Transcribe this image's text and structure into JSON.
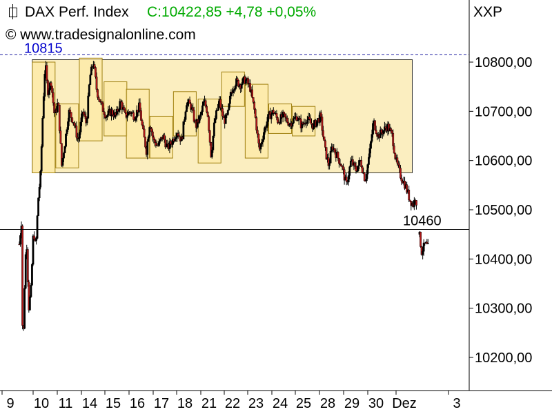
{
  "header": {
    "title": "DAX Perf. Index",
    "close_text": "C:10422,85 +4,78 +0,05%",
    "copyright": "© www.tradesignalonline.com",
    "symbol": "XXP"
  },
  "colors": {
    "up": "#000000",
    "down": "#b01818",
    "box_fill": "#fbeec0",
    "box_stroke": "#a08010",
    "dashed_line": "#1a1aa0",
    "annotation_blue": "#0000cc",
    "close_green": "#00aa00"
  },
  "chart_data": {
    "type": "candlestick",
    "title": "DAX Perf. Index",
    "ylim": [
      10140,
      10840
    ],
    "y_ticks": [
      10200,
      10300,
      10400,
      10500,
      10600,
      10700,
      10800
    ],
    "y_tick_labels": [
      "10200,00",
      "10300,00",
      "10400,00",
      "10500,00",
      "10600,00",
      "10700,00",
      "10800,00"
    ],
    "x_labels": [
      "9",
      "10",
      "11",
      "14",
      "15",
      "16",
      "17",
      "18",
      "21",
      "22",
      "23",
      "24",
      "25",
      "28",
      "29",
      "30",
      "Dez",
      "3"
    ],
    "annotations": [
      {
        "text": "10815",
        "value": 10815,
        "style": "dashed",
        "color": "blue"
      },
      {
        "text": "10460",
        "value": 10460,
        "style": "solid",
        "color": "black"
      }
    ],
    "range_box": {
      "high": 10805,
      "low": 10575
    },
    "sub_boxes": [
      {
        "high": 10800,
        "low": 10575
      },
      {
        "high": 10715,
        "low": 10585
      },
      {
        "high": 10808,
        "low": 10640
      },
      {
        "high": 10760,
        "low": 10650
      },
      {
        "high": 10745,
        "low": 10605
      },
      {
        "high": 10690,
        "low": 10605
      },
      {
        "high": 10740,
        "low": 10650
      },
      {
        "high": 10725,
        "low": 10595
      },
      {
        "high": 10780,
        "low": 10710
      },
      {
        "high": 10755,
        "low": 10605
      },
      {
        "high": 10715,
        "low": 10655
      },
      {
        "high": 10710,
        "low": 10650
      }
    ],
    "path": [
      {
        "x": 0.0,
        "y": 10430
      },
      {
        "x": 0.1,
        "y": 10480
      },
      {
        "x": 0.15,
        "y": 10175
      },
      {
        "x": 0.2,
        "y": 10310
      },
      {
        "x": 0.3,
        "y": 10450
      },
      {
        "x": 0.4,
        "y": 10300
      },
      {
        "x": 0.5,
        "y": 10340
      },
      {
        "x": 0.6,
        "y": 10460
      },
      {
        "x": 0.7,
        "y": 10420
      },
      {
        "x": 0.8,
        "y": 10520
      },
      {
        "x": 0.9,
        "y": 10570
      },
      {
        "x": 1.0,
        "y": 10700
      },
      {
        "x": 1.1,
        "y": 10800
      },
      {
        "x": 1.2,
        "y": 10740
      },
      {
        "x": 1.35,
        "y": 10760
      },
      {
        "x": 1.5,
        "y": 10690
      },
      {
        "x": 1.65,
        "y": 10720
      },
      {
        "x": 1.8,
        "y": 10590
      },
      {
        "x": 1.95,
        "y": 10640
      },
      {
        "x": 2.1,
        "y": 10700
      },
      {
        "x": 2.3,
        "y": 10680
      },
      {
        "x": 2.5,
        "y": 10640
      },
      {
        "x": 2.7,
        "y": 10700
      },
      {
        "x": 2.85,
        "y": 10675
      },
      {
        "x": 3.0,
        "y": 10770
      },
      {
        "x": 3.15,
        "y": 10800
      },
      {
        "x": 3.3,
        "y": 10740
      },
      {
        "x": 3.5,
        "y": 10710
      },
      {
        "x": 3.7,
        "y": 10690
      },
      {
        "x": 3.9,
        "y": 10700
      },
      {
        "x": 4.1,
        "y": 10690
      },
      {
        "x": 4.3,
        "y": 10720
      },
      {
        "x": 4.5,
        "y": 10690
      },
      {
        "x": 4.7,
        "y": 10700
      },
      {
        "x": 4.9,
        "y": 10690
      },
      {
        "x": 5.1,
        "y": 10710
      },
      {
        "x": 5.25,
        "y": 10660
      },
      {
        "x": 5.4,
        "y": 10620
      },
      {
        "x": 5.55,
        "y": 10680
      },
      {
        "x": 5.7,
        "y": 10640
      },
      {
        "x": 5.9,
        "y": 10630
      },
      {
        "x": 6.1,
        "y": 10650
      },
      {
        "x": 6.3,
        "y": 10625
      },
      {
        "x": 6.5,
        "y": 10640
      },
      {
        "x": 6.7,
        "y": 10660
      },
      {
        "x": 6.9,
        "y": 10640
      },
      {
        "x": 7.1,
        "y": 10720
      },
      {
        "x": 7.3,
        "y": 10710
      },
      {
        "x": 7.5,
        "y": 10670
      },
      {
        "x": 7.7,
        "y": 10690
      },
      {
        "x": 7.85,
        "y": 10720
      },
      {
        "x": 8.0,
        "y": 10700
      },
      {
        "x": 8.15,
        "y": 10610
      },
      {
        "x": 8.3,
        "y": 10680
      },
      {
        "x": 8.5,
        "y": 10720
      },
      {
        "x": 8.7,
        "y": 10680
      },
      {
        "x": 8.85,
        "y": 10690
      },
      {
        "x": 9.0,
        "y": 10740
      },
      {
        "x": 9.2,
        "y": 10760
      },
      {
        "x": 9.4,
        "y": 10755
      },
      {
        "x": 9.6,
        "y": 10765
      },
      {
        "x": 9.8,
        "y": 10750
      },
      {
        "x": 10.0,
        "y": 10700
      },
      {
        "x": 10.2,
        "y": 10620
      },
      {
        "x": 10.4,
        "y": 10660
      },
      {
        "x": 10.6,
        "y": 10690
      },
      {
        "x": 10.8,
        "y": 10700
      },
      {
        "x": 11.0,
        "y": 10680
      },
      {
        "x": 11.2,
        "y": 10690
      },
      {
        "x": 11.5,
        "y": 10675
      },
      {
        "x": 11.8,
        "y": 10690
      },
      {
        "x": 12.0,
        "y": 10670
      },
      {
        "x": 12.2,
        "y": 10685
      },
      {
        "x": 12.5,
        "y": 10670
      },
      {
        "x": 12.8,
        "y": 10690
      },
      {
        "x": 13.0,
        "y": 10620
      },
      {
        "x": 13.15,
        "y": 10590
      },
      {
        "x": 13.3,
        "y": 10630
      },
      {
        "x": 13.5,
        "y": 10610
      },
      {
        "x": 13.7,
        "y": 10590
      },
      {
        "x": 13.9,
        "y": 10550
      },
      {
        "x": 14.1,
        "y": 10600
      },
      {
        "x": 14.3,
        "y": 10580
      },
      {
        "x": 14.5,
        "y": 10600
      },
      {
        "x": 14.7,
        "y": 10560
      },
      {
        "x": 14.9,
        "y": 10620
      },
      {
        "x": 15.05,
        "y": 10680
      },
      {
        "x": 15.25,
        "y": 10650
      },
      {
        "x": 15.45,
        "y": 10660
      },
      {
        "x": 15.65,
        "y": 10670
      },
      {
        "x": 15.85,
        "y": 10650
      },
      {
        "x": 16.0,
        "y": 10600
      },
      {
        "x": 16.2,
        "y": 10570
      },
      {
        "x": 16.4,
        "y": 10550
      },
      {
        "x": 16.6,
        "y": 10520
      },
      {
        "x": 16.75,
        "y": 10510
      },
      {
        "x": 16.85,
        "y": 10530
      },
      {
        "x": 17.0,
        "y": 10450
      },
      {
        "x": 17.1,
        "y": 10415
      },
      {
        "x": 17.25,
        "y": 10430
      },
      {
        "x": 17.4,
        "y": 10422
      }
    ]
  }
}
